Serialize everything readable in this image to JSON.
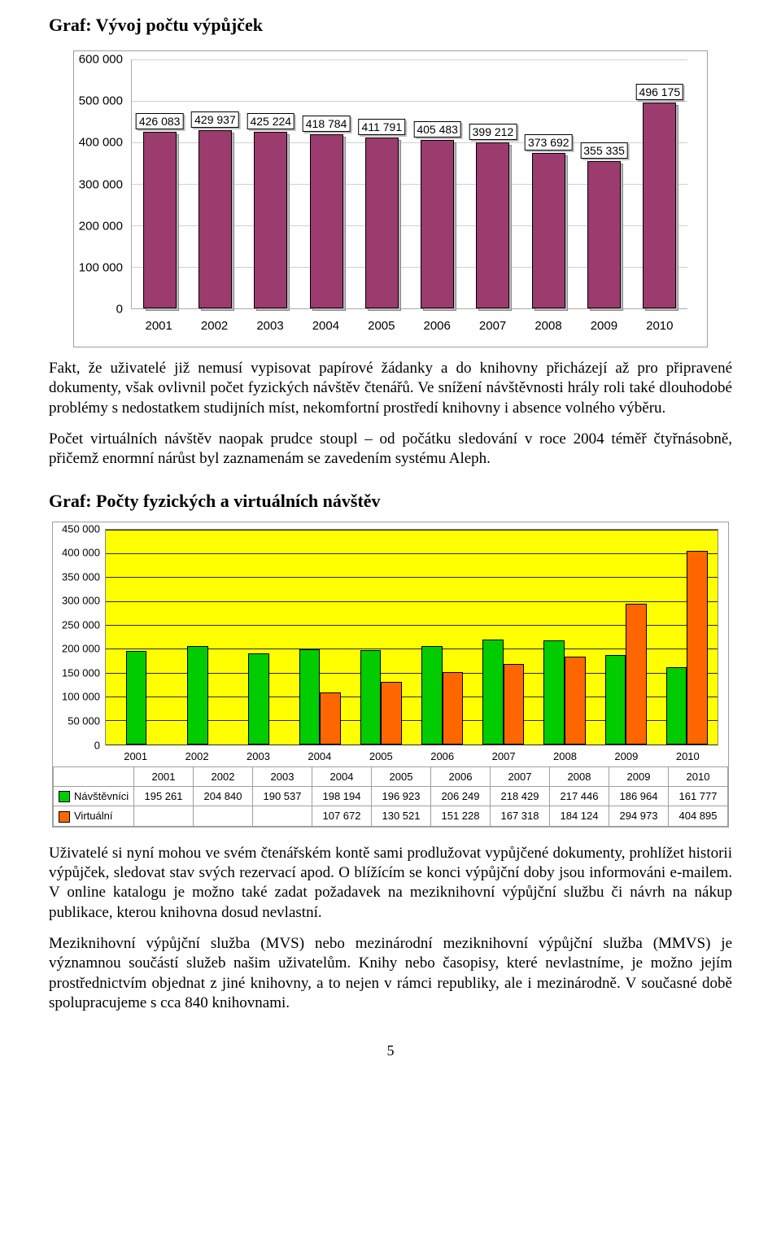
{
  "title1": "Graf: Vývoj počtu výpůjček",
  "chart1": {
    "type": "bar",
    "categories": [
      "2001",
      "2002",
      "2003",
      "2004",
      "2005",
      "2006",
      "2007",
      "2008",
      "2009",
      "2010"
    ],
    "values": [
      426083,
      429937,
      425224,
      418784,
      411791,
      405483,
      399212,
      373692,
      355335,
      496175
    ],
    "labels": [
      "426 083",
      "429 937",
      "425 224",
      "418 784",
      "411 791",
      "405 483",
      "399 212",
      "373 692",
      "355 335",
      "496 175"
    ],
    "bar_color": "#9b3b6e",
    "background_color": "#ffffff",
    "grid_color": "#d0d0d0",
    "axis_color": "#aaaaaa",
    "ylim": [
      0,
      600000
    ],
    "ytick_step": 100000,
    "yticks": [
      0,
      100000,
      200000,
      300000,
      400000,
      500000,
      600000
    ],
    "ytick_labels": [
      "0",
      "100 000",
      "200 000",
      "300 000",
      "400 000",
      "500 000",
      "600 000"
    ],
    "bar_width": 0.6,
    "label_fontsize": 14,
    "axis_fontsize": 15
  },
  "para1": "Fakt, že uživatelé již nemusí vypisovat papírové žádanky a do knihovny přicházejí až pro připravené dokumenty, však ovlivnil počet fyzických návštěv čtenářů. Ve snížení návštěvnosti hrály roli také dlouhodobé problémy s nedostatkem studijních míst, nekomfortní prostředí knihovny i absence volného výběru.",
  "para2": "Počet virtuálních návštěv naopak prudce stoupl – od počátku sledování v roce 2004 téměř čtyřnásobně, přičemž enormní nárůst byl zaznamenám se zavedením systému Aleph.",
  "title2": "Graf: Počty fyzických a virtuálních návštěv",
  "chart2": {
    "type": "grouped-bar-with-table",
    "categories": [
      "2001",
      "2002",
      "2003",
      "2004",
      "2005",
      "2006",
      "2007",
      "2008",
      "2009",
      "2010"
    ],
    "series": [
      {
        "name": "Návštěvníci",
        "color": "#00cc00",
        "values": [
          195261,
          204840,
          190537,
          198194,
          196923,
          206249,
          218429,
          217446,
          186964,
          161777
        ],
        "labels": [
          "195 261",
          "204 840",
          "190 537",
          "198 194",
          "196 923",
          "206 249",
          "218 429",
          "217 446",
          "186 964",
          "161 777"
        ]
      },
      {
        "name": "Virtuální",
        "color": "#ff6600",
        "values": [
          null,
          null,
          null,
          107672,
          130521,
          151228,
          167318,
          184124,
          294973,
          404895
        ],
        "labels": [
          "",
          "",
          "",
          "107 672",
          "130 521",
          "151 228",
          "167 318",
          "184 124",
          "294 973",
          "404 895"
        ]
      }
    ],
    "background_color": "#ffff00",
    "grid_color": "#2b2b2b",
    "axis_color": "#888888",
    "ylim": [
      0,
      450000
    ],
    "ytick_step": 50000,
    "yticks": [
      0,
      50000,
      100000,
      150000,
      200000,
      250000,
      300000,
      350000,
      400000,
      450000
    ],
    "ytick_labels": [
      "0",
      "50 000",
      "100 000",
      "150 000",
      "200 000",
      "250 000",
      "300 000",
      "350 000",
      "400 000",
      "450 000"
    ],
    "bar_width": 0.34,
    "axis_fontsize": 13
  },
  "para3": "Uživatelé si nyní mohou ve svém čtenářském kontě sami prodlužovat vypůjčené dokumenty, prohlížet historii výpůjček, sledovat stav svých rezervací apod. O blížícím se konci výpůjční doby jsou informováni e-mailem. V online katalogu je možno také zadat požadavek na meziknihovní výpůjční službu či návrh na nákup publikace, kterou knihovna dosud nevlastní.",
  "para4": "Meziknihovní výpůjční služba (MVS) nebo mezinárodní meziknihovní výpůjční služba (MMVS) je významnou součástí služeb našim uživatelům. Knihy nebo časopisy, které nevlastníme, je možno jejím prostřednictvím objednat z jiné knihovny, a to nejen v rámci republiky, ale i mezinárodně. V současné době spolupracujeme s cca 840 knihovnami.",
  "page_number": "5"
}
